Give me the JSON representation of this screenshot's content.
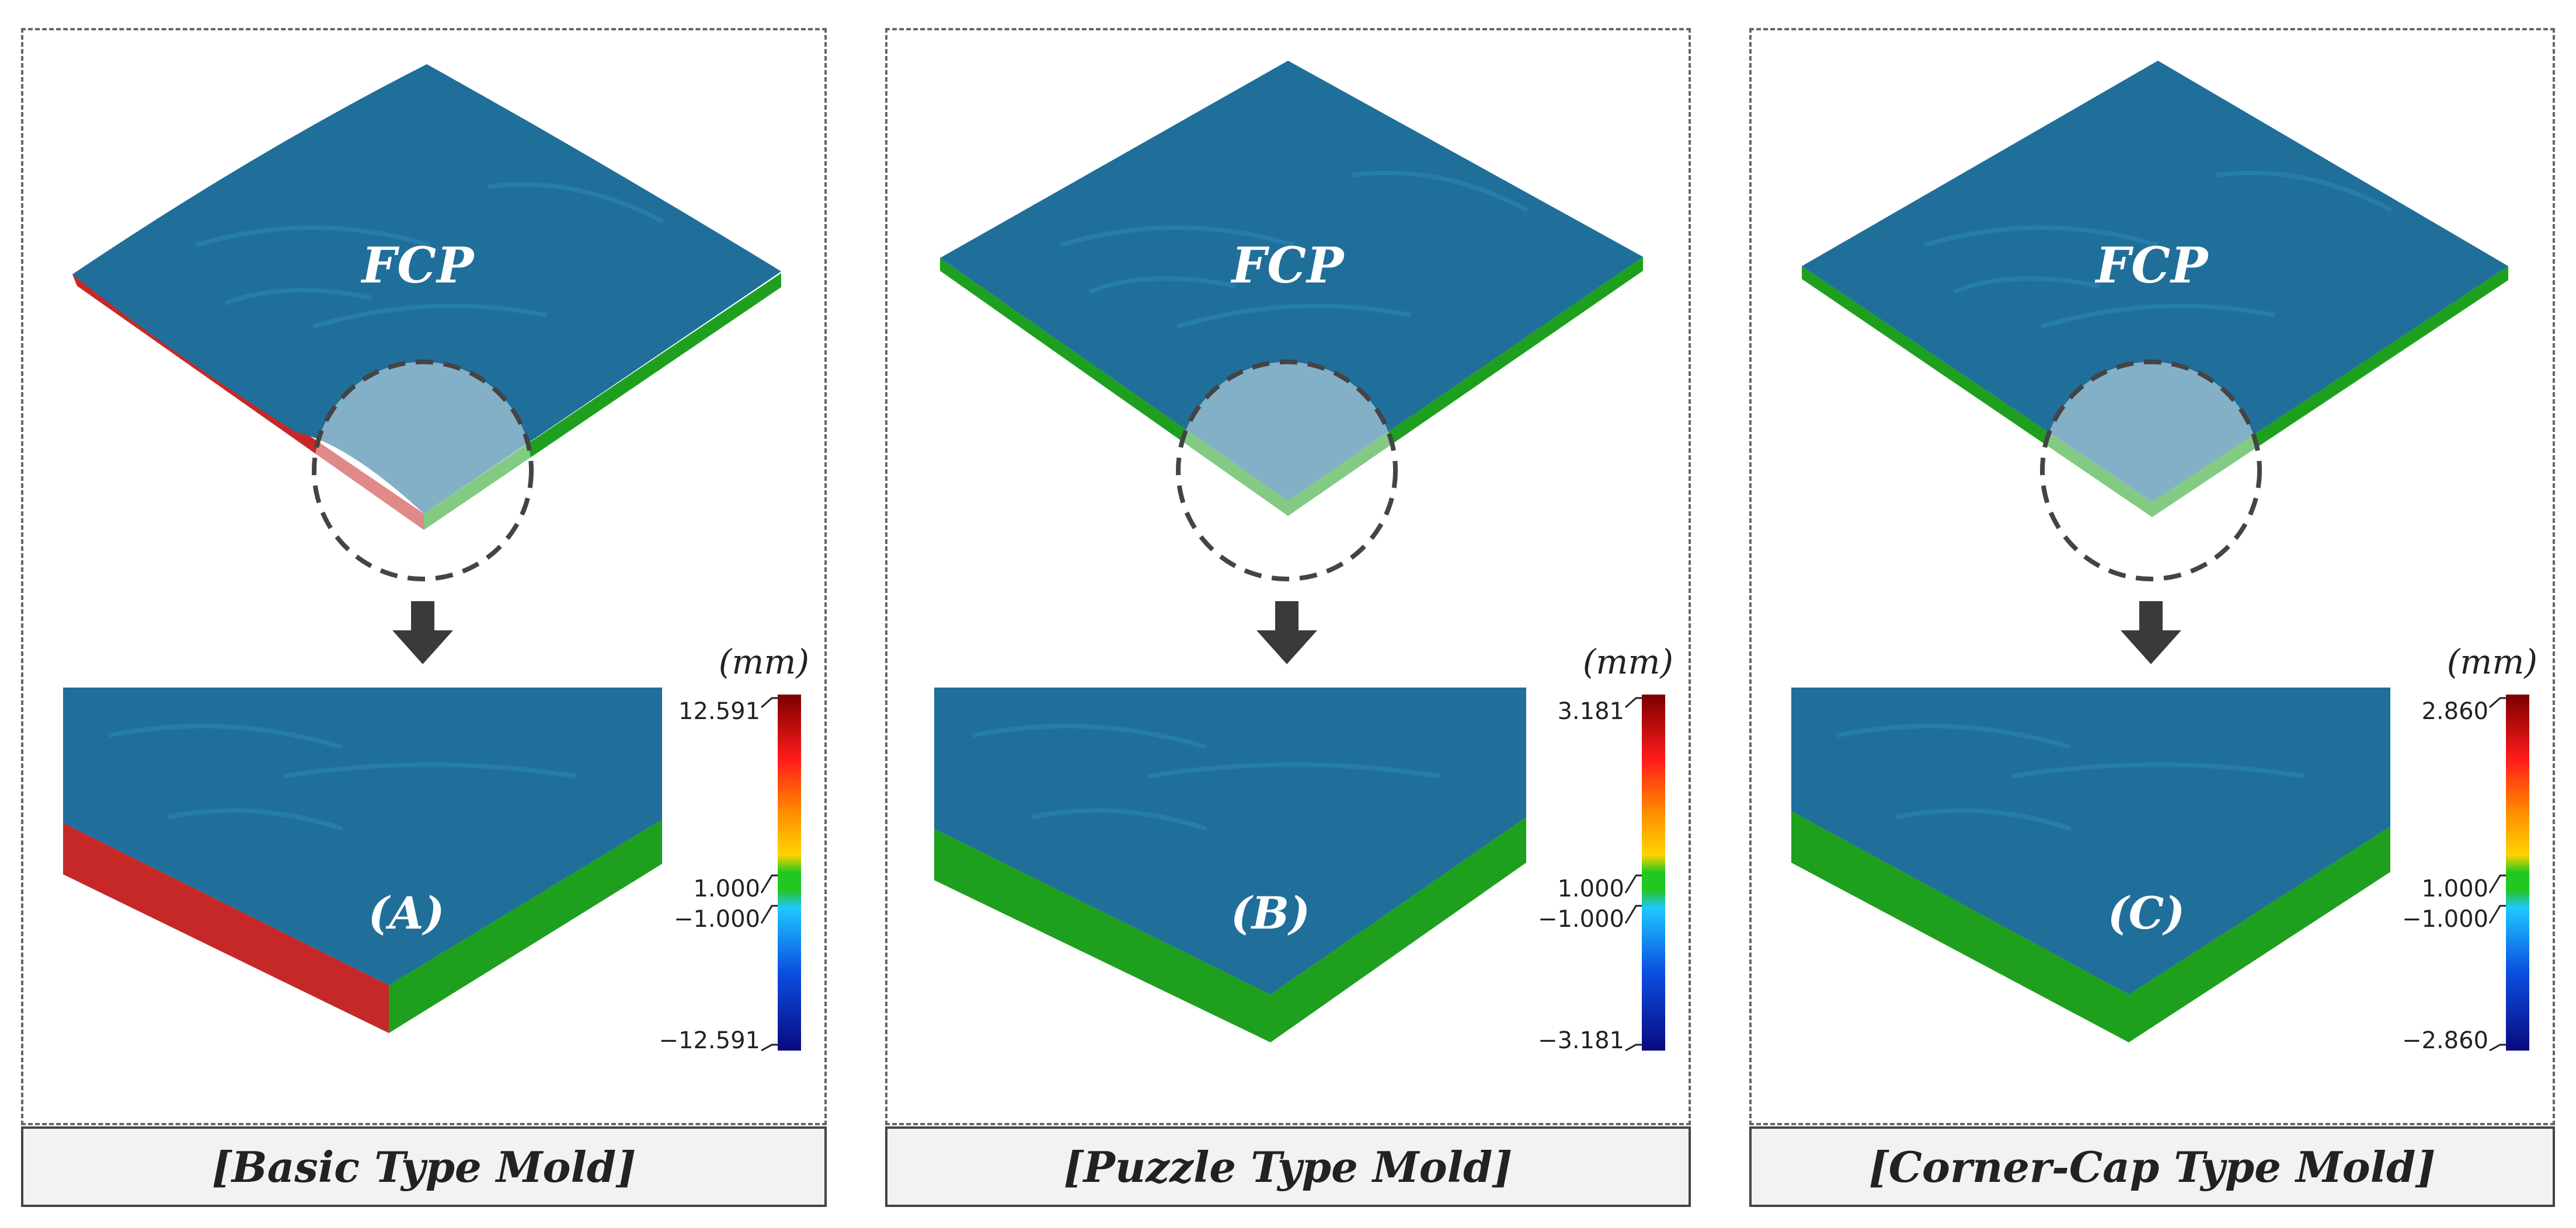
{
  "panels": [
    {
      "plate_label": "FCP",
      "zoom_label": "(A)",
      "caption": "[Basic Type Mold]",
      "scale": {
        "unit": "(mm)",
        "max": "12.591",
        "upper_tol": "1.000",
        "lower_tol": "−1.000",
        "min": "−12.591"
      },
      "edge_left_color": "#c62828",
      "edge_right_color": "#1ea01e"
    },
    {
      "plate_label": "FCP",
      "zoom_label": "(B)",
      "caption": "[Puzzle Type Mold]",
      "scale": {
        "unit": "(mm)",
        "max": "3.181",
        "upper_tol": "1.000",
        "lower_tol": "−1.000",
        "min": "−3.181"
      },
      "edge_left_color": "#1ea01e",
      "edge_right_color": "#1ea01e"
    },
    {
      "plate_label": "FCP",
      "zoom_label": "(C)",
      "caption": "[Corner-Cap Type Mold]",
      "scale": {
        "unit": "(mm)",
        "max": "2.860",
        "upper_tol": "1.000",
        "lower_tol": "−1.000",
        "min": "−2.860"
      },
      "edge_left_color": "#1ea01e",
      "edge_right_color": "#1ea01e"
    }
  ],
  "colors": {
    "surface": "#1f6f9a",
    "surface_light": "#2a86b5",
    "frame": "#666666",
    "caption_bg": "#f2f2f2",
    "arrow": "#3a3a3a"
  }
}
